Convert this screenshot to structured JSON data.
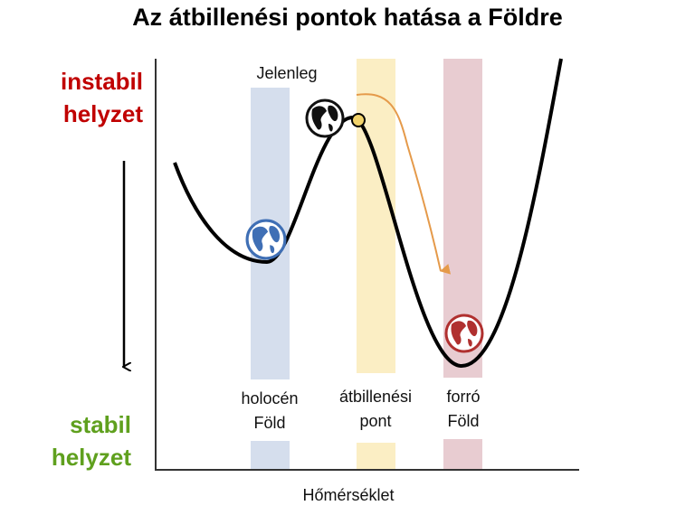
{
  "title": "Az átbillenési pontok hatása a Földre",
  "y_axis": {
    "top_label": [
      "instabil",
      "helyzet"
    ],
    "bottom_label": [
      "stabil",
      "helyzet"
    ],
    "top_color": "#c00000",
    "bottom_color": "#5fa01e"
  },
  "x_axis": {
    "label": "Hőmérséklet"
  },
  "current_label": "Jelenleg",
  "states": [
    {
      "label": [
        "holocén",
        "Föld"
      ],
      "band_color": "#d5deed",
      "globe_color": "#3f6fb5",
      "icon": "globe-icon"
    },
    {
      "label": [
        "átbillenési",
        "pont"
      ],
      "band_color": "#fbeec4",
      "marker_color": "#f2d36b",
      "icon": "tipping-point-dot"
    },
    {
      "label": [
        "forró",
        "Föld"
      ],
      "band_color": "#e8ccd1",
      "globe_color": "#b0302f",
      "icon": "globe-icon"
    }
  ],
  "arrow_color": "#e59a4a"
}
